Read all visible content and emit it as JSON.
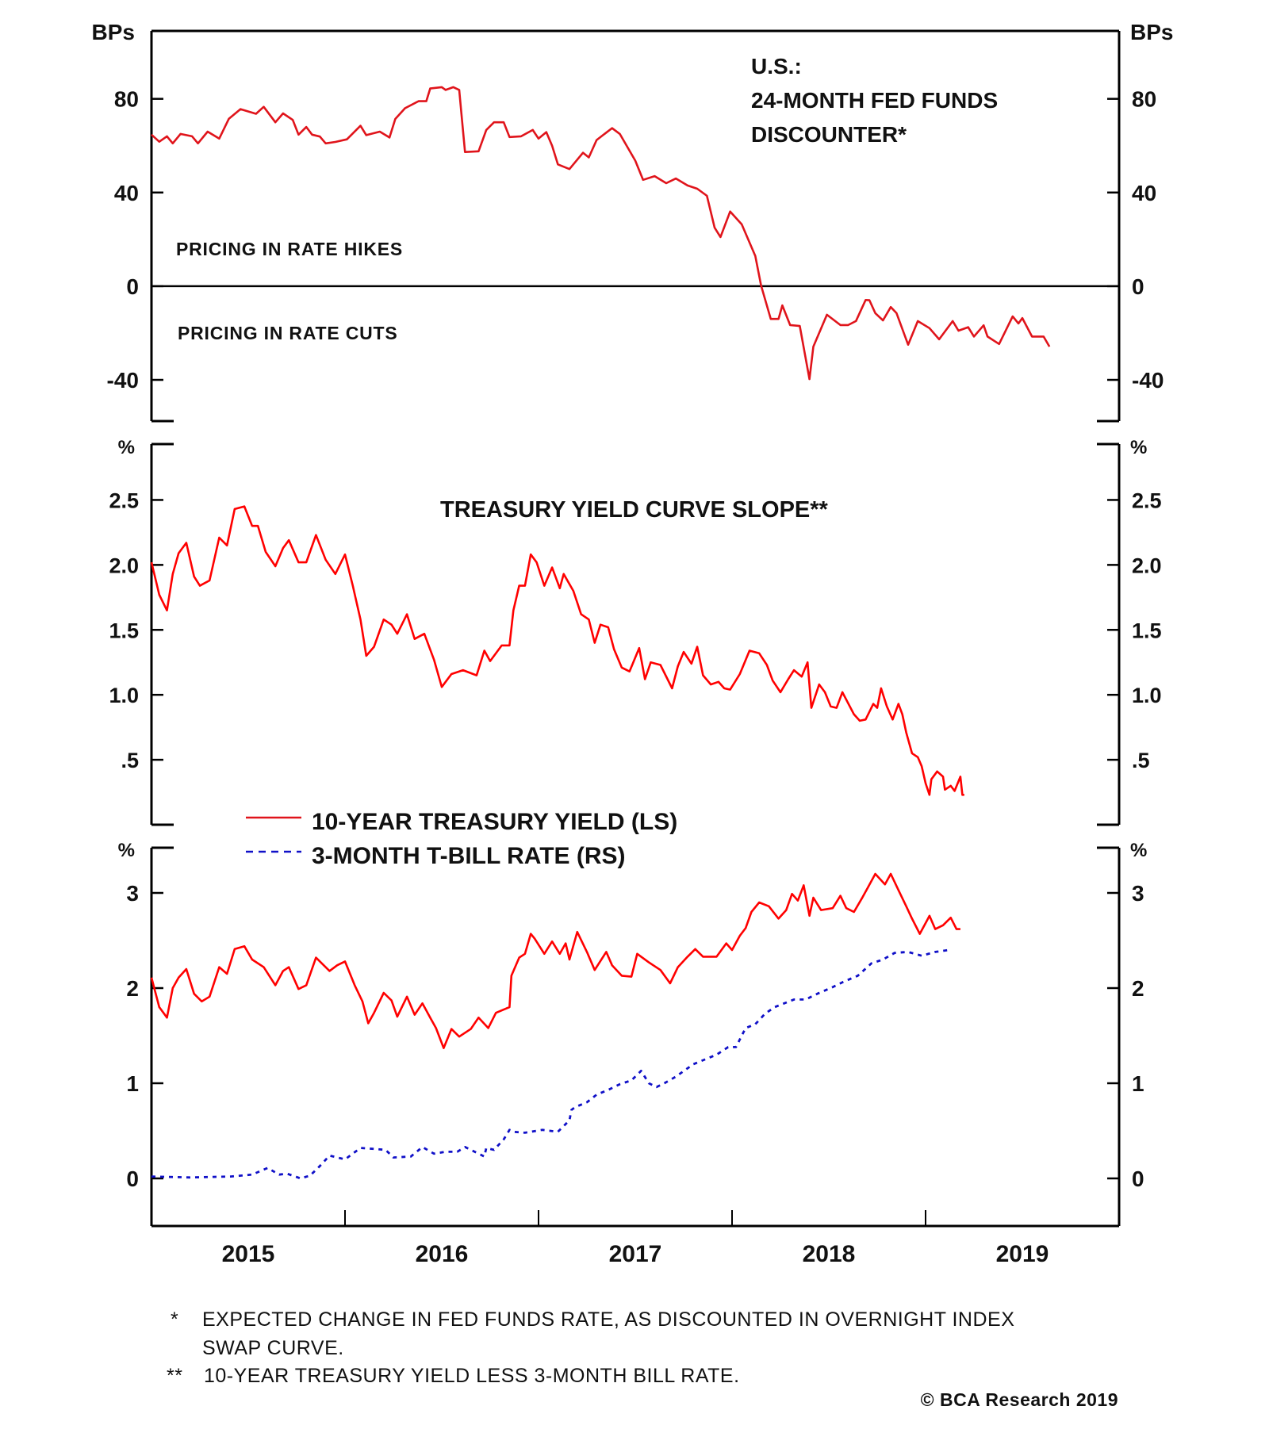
{
  "chart_data": [
    {
      "type": "line",
      "panel": "top",
      "title": "U.S.: 24-MONTH FED FUNDS DISCOUNTER*",
      "title_lines": [
        "U.S.:",
        "24-MONTH FED FUNDS",
        "DISCOUNTER*"
      ],
      "ylabel_left": "BPs",
      "ylabel_right": "BPs",
      "ylim": [
        -57.6,
        109
      ],
      "yticks": [
        80,
        40,
        0,
        -40
      ],
      "ytick_labels": [
        "80",
        "40",
        "0",
        "-40"
      ],
      "zero_line": true,
      "annotations": [
        "PRICING IN RATE HIKES",
        "PRICING IN RATE CUTS"
      ],
      "series": [
        {
          "name": "24-Month Fed Funds Discounter",
          "color": "#e0141b",
          "style": "solid",
          "x": [
            2015.0,
            2015.04,
            2015.08,
            2015.11,
            2015.15,
            2015.21,
            2015.24,
            2015.29,
            2015.35,
            2015.4,
            2015.46,
            2015.54,
            2015.58,
            2015.64,
            2015.68,
            2015.73,
            2015.76,
            2015.8,
            2015.83,
            2015.87,
            2015.9,
            2015.95,
            2016.01,
            2016.08,
            2016.11,
            2016.18,
            2016.23,
            2016.26,
            2016.31,
            2016.38,
            2016.42,
            2016.44,
            2016.5,
            2016.52,
            2016.56,
            2016.59,
            2016.6,
            2016.62,
            2016.69,
            2016.73,
            2016.77,
            2016.82,
            2016.85,
            2016.91,
            2016.97,
            2017.0,
            2017.04,
            2017.07,
            2017.1,
            2017.16,
            2017.23,
            2017.26,
            2017.3,
            2017.38,
            2017.42,
            2017.5,
            2017.54,
            2017.6,
            2017.66,
            2017.71,
            2017.77,
            2017.82,
            2017.87,
            2017.91,
            2017.94,
            2017.99,
            2018.05,
            2018.12,
            2018.15,
            2018.2,
            2018.24,
            2018.26,
            2018.3,
            2018.35,
            2018.4,
            2018.42,
            2018.49,
            2018.56,
            2018.6,
            2018.64,
            2018.69,
            2018.71,
            2018.74,
            2018.78,
            2018.82,
            2018.85,
            2018.91,
            2018.96,
            2019.02,
            2019.07,
            2019.14,
            2019.17,
            2019.22,
            2019.25,
            2019.3,
            2019.32,
            2019.38,
            2019.45,
            2019.48,
            2019.5,
            2019.55,
            2019.61,
            2019.64
          ],
          "y": [
            64.7,
            61.7,
            64,
            61,
            65,
            64,
            61,
            66,
            63,
            71.5,
            75.6,
            73.6,
            76.6,
            70,
            73.8,
            71,
            64.7,
            68,
            64.7,
            63.9,
            61,
            61.6,
            62.7,
            68.5,
            64.5,
            66,
            63.5,
            71.4,
            76,
            79,
            79,
            84.4,
            85,
            83.8,
            85,
            83.8,
            75,
            57.3,
            57.6,
            66.7,
            70,
            70,
            63.7,
            64,
            66.7,
            63,
            65.8,
            60,
            52,
            50,
            57,
            55,
            62.4,
            67.5,
            65,
            53.6,
            45.4,
            47,
            44,
            46,
            43,
            41.6,
            38.6,
            25,
            21,
            31.9,
            26.4,
            12.9,
            0.3,
            -14,
            -14,
            -8.2,
            -16.6,
            -17,
            -39.7,
            -25.8,
            -12.2,
            -16.6,
            -16.6,
            -14.9,
            -5.9,
            -6,
            -11.5,
            -14.6,
            -8.9,
            -11.5,
            -25,
            -14.9,
            -17.9,
            -22.7,
            -14.9,
            -19,
            -17.5,
            -21.5,
            -16.7,
            -21.5,
            -24.7,
            -12.9,
            -15.9,
            -13.6,
            -21.5,
            -21.5,
            -25.8
          ]
        }
      ]
    },
    {
      "type": "line",
      "panel": "middle",
      "title": "TREASURY YIELD CURVE SLOPE**",
      "ylabel_left": "%",
      "ylabel_right": "%",
      "ylim": [
        0,
        2.93
      ],
      "yticks": [
        0.5,
        1.0,
        1.5,
        2.0,
        2.5
      ],
      "ytick_labels": [
        ".5",
        "1.0",
        "1.5",
        "2.0",
        "2.5"
      ],
      "series": [
        {
          "name": "Treasury Yield Curve Slope",
          "color": "#ff0000",
          "style": "solid",
          "x": [
            2015.0,
            2015.04,
            2015.08,
            2015.11,
            2015.14,
            2015.18,
            2015.22,
            2015.25,
            2015.3,
            2015.35,
            2015.39,
            2015.43,
            2015.48,
            2015.52,
            2015.55,
            2015.59,
            2015.64,
            2015.68,
            2015.71,
            2015.76,
            2015.8,
            2015.85,
            2015.9,
            2015.95,
            2016.0,
            2016.04,
            2016.08,
            2016.11,
            2016.15,
            2016.2,
            2016.24,
            2016.27,
            2016.32,
            2016.36,
            2016.41,
            2016.46,
            2016.5,
            2016.55,
            2016.61,
            2016.68,
            2016.72,
            2016.75,
            2016.81,
            2016.85,
            2016.87,
            2016.9,
            2016.93,
            2016.96,
            2016.99,
            2017.03,
            2017.07,
            2017.11,
            2017.13,
            2017.18,
            2017.22,
            2017.26,
            2017.29,
            2017.32,
            2017.36,
            2017.39,
            2017.43,
            2017.47,
            2017.52,
            2017.55,
            2017.58,
            2017.63,
            2017.69,
            2017.72,
            2017.75,
            2017.79,
            2017.82,
            2017.85,
            2017.89,
            2017.93,
            2017.96,
            2017.99,
            2018.04,
            2018.09,
            2018.14,
            2018.18,
            2018.21,
            2018.25,
            2018.29,
            2018.32,
            2018.36,
            2018.39,
            2018.41,
            2018.45,
            2018.48,
            2018.51,
            2018.54,
            2018.57,
            2018.63,
            2018.66,
            2018.69,
            2018.73,
            2018.75,
            2018.77,
            2018.8,
            2018.83,
            2018.86,
            2018.88,
            2018.9,
            2018.93,
            2018.96,
            2018.98,
            2019.0,
            2019.02,
            2019.03,
            2019.06,
            2019.09,
            2019.1,
            2019.13,
            2019.15,
            2019.18,
            2019.19,
            2019.2
          ],
          "y": [
            2.02,
            1.77,
            1.65,
            1.93,
            2.09,
            2.17,
            1.91,
            1.84,
            1.88,
            2.21,
            2.15,
            2.43,
            2.45,
            2.3,
            2.3,
            2.1,
            1.99,
            2.13,
            2.19,
            2.02,
            2.02,
            2.23,
            2.04,
            1.93,
            2.08,
            1.84,
            1.58,
            1.3,
            1.37,
            1.58,
            1.54,
            1.47,
            1.62,
            1.43,
            1.47,
            1.27,
            1.06,
            1.16,
            1.19,
            1.15,
            1.34,
            1.26,
            1.38,
            1.38,
            1.65,
            1.84,
            1.84,
            2.08,
            2.02,
            1.84,
            1.98,
            1.82,
            1.93,
            1.8,
            1.62,
            1.58,
            1.4,
            1.54,
            1.52,
            1.35,
            1.21,
            1.18,
            1.36,
            1.12,
            1.25,
            1.23,
            1.05,
            1.22,
            1.33,
            1.24,
            1.37,
            1.15,
            1.08,
            1.1,
            1.05,
            1.04,
            1.16,
            1.34,
            1.32,
            1.23,
            1.11,
            1.02,
            1.12,
            1.19,
            1.14,
            1.25,
            0.9,
            1.08,
            1.02,
            0.91,
            0.9,
            1.02,
            0.85,
            0.8,
            0.81,
            0.93,
            0.9,
            1.05,
            0.91,
            0.81,
            0.93,
            0.85,
            0.71,
            0.55,
            0.52,
            0.45,
            0.32,
            0.23,
            0.35,
            0.41,
            0.37,
            0.27,
            0.3,
            0.26,
            0.37,
            0.23,
            0.23
          ]
        }
      ]
    },
    {
      "type": "line",
      "panel": "bottom",
      "ylabel_left": "%",
      "ylabel_right": "%",
      "ylim": [
        -0.5,
        3.475
      ],
      "yticks": [
        0,
        1,
        2,
        3
      ],
      "ytick_labels": [
        "0",
        "1",
        "2",
        "3"
      ],
      "xlim": [
        2015,
        2020
      ],
      "xticks": [
        2016,
        2017,
        2018,
        2019
      ],
      "xtick_labels": [
        "2015",
        "2016",
        "2017",
        "2018",
        "2019"
      ],
      "legend": {
        "placement": "top-left",
        "entries": [
          {
            "label": "10-YEAR TREASURY YIELD (LS)",
            "color": "#e0141b",
            "style": "solid"
          },
          {
            "label": "3-MONTH T-BILL RATE (RS)",
            "color": "#1010c8",
            "style": "dashed"
          }
        ]
      },
      "series": [
        {
          "name": "10-YEAR TREASURY YIELD (LS)",
          "color": "#ff0000",
          "style": "solid",
          "x": [
            2015.0,
            2015.04,
            2015.08,
            2015.11,
            2015.14,
            2015.18,
            2015.22,
            2015.26,
            2015.3,
            2015.35,
            2015.39,
            2015.43,
            2015.48,
            2015.52,
            2015.58,
            2015.64,
            2015.68,
            2015.71,
            2015.76,
            2015.8,
            2015.85,
            2015.92,
            2015.96,
            2016.0,
            2016.05,
            2016.09,
            2016.12,
            2016.15,
            2016.2,
            2016.24,
            2016.27,
            2016.32,
            2016.36,
            2016.4,
            2016.44,
            2016.47,
            2016.51,
            2016.55,
            2016.59,
            2016.65,
            2016.69,
            2016.74,
            2016.78,
            2016.85,
            2016.86,
            2016.9,
            2016.93,
            2016.96,
            2016.98,
            2017.03,
            2017.07,
            2017.11,
            2017.14,
            2017.16,
            2017.2,
            2017.25,
            2017.29,
            2017.35,
            2017.38,
            2017.43,
            2017.48,
            2017.51,
            2017.57,
            2017.63,
            2017.68,
            2017.72,
            2017.77,
            2017.81,
            2017.85,
            2017.92,
            2017.97,
            2018.0,
            2018.04,
            2018.07,
            2018.1,
            2018.14,
            2018.19,
            2018.24,
            2018.28,
            2018.31,
            2018.34,
            2018.37,
            2018.4,
            2018.42,
            2018.46,
            2018.52,
            2018.56,
            2018.59,
            2018.63,
            2018.67,
            2018.7,
            2018.74,
            2018.79,
            2018.82,
            2018.86,
            2018.9,
            2018.93,
            2018.97,
            2019.01,
            2019.02,
            2019.05,
            2019.09,
            2019.13,
            2019.16,
            2019.18
          ],
          "y": [
            2.11,
            1.8,
            1.69,
            2.0,
            2.11,
            2.2,
            1.94,
            1.86,
            1.91,
            2.22,
            2.15,
            2.41,
            2.44,
            2.3,
            2.22,
            2.03,
            2.18,
            2.22,
            1.99,
            2.03,
            2.32,
            2.18,
            2.24,
            2.28,
            2.03,
            1.86,
            1.63,
            1.74,
            1.95,
            1.87,
            1.7,
            1.91,
            1.72,
            1.84,
            1.69,
            1.58,
            1.37,
            1.57,
            1.49,
            1.57,
            1.69,
            1.58,
            1.74,
            1.8,
            2.13,
            2.32,
            2.36,
            2.57,
            2.52,
            2.36,
            2.49,
            2.36,
            2.47,
            2.3,
            2.59,
            2.38,
            2.19,
            2.38,
            2.24,
            2.13,
            2.12,
            2.36,
            2.27,
            2.19,
            2.05,
            2.22,
            2.33,
            2.41,
            2.33,
            2.33,
            2.47,
            2.4,
            2.55,
            2.63,
            2.8,
            2.9,
            2.86,
            2.73,
            2.82,
            2.99,
            2.92,
            3.08,
            2.76,
            2.95,
            2.82,
            2.84,
            2.97,
            2.84,
            2.8,
            2.94,
            3.05,
            3.2,
            3.09,
            3.2,
            3.03,
            2.86,
            2.73,
            2.57,
            2.72,
            2.76,
            2.62,
            2.66,
            2.74,
            2.62,
            2.62
          ]
        },
        {
          "name": "3-MONTH T-BILL RATE (RS)",
          "color": "#1010c8",
          "style": "dashed",
          "x": [
            2015.0,
            2015.2,
            2015.41,
            2015.52,
            2015.6,
            2015.66,
            2015.7,
            2015.77,
            2015.82,
            2015.87,
            2015.92,
            2016.0,
            2016.08,
            2016.15,
            2016.21,
            2016.25,
            2016.34,
            2016.4,
            2016.46,
            2016.52,
            2016.58,
            2016.62,
            2016.72,
            2016.73,
            2016.77,
            2016.82,
            2016.85,
            2016.87,
            2016.93,
            2017.02,
            2017.1,
            2017.16,
            2017.17,
            2017.19,
            2017.25,
            2017.3,
            2017.36,
            2017.42,
            2017.48,
            2017.53,
            2017.57,
            2017.61,
            2017.65,
            2017.71,
            2017.8,
            2017.86,
            2017.92,
            2017.98,
            2018.02,
            2018.07,
            2018.12,
            2018.17,
            2018.22,
            2018.32,
            2018.38,
            2018.44,
            2018.52,
            2018.58,
            2018.65,
            2018.72,
            2018.78,
            2018.84,
            2018.91,
            2018.98,
            2019.05,
            2019.12
          ],
          "y": [
            0.02,
            0.01,
            0.02,
            0.04,
            0.11,
            0.04,
            0.05,
            0.0,
            0.03,
            0.13,
            0.24,
            0.2,
            0.32,
            0.31,
            0.3,
            0.22,
            0.23,
            0.33,
            0.26,
            0.28,
            0.28,
            0.33,
            0.23,
            0.32,
            0.3,
            0.41,
            0.51,
            0.49,
            0.48,
            0.51,
            0.49,
            0.61,
            0.72,
            0.75,
            0.8,
            0.88,
            0.93,
            0.99,
            1.03,
            1.13,
            1.0,
            0.96,
            1.0,
            1.07,
            1.2,
            1.25,
            1.3,
            1.38,
            1.38,
            1.58,
            1.62,
            1.73,
            1.8,
            1.88,
            1.88,
            1.94,
            2.01,
            2.07,
            2.13,
            2.26,
            2.3,
            2.37,
            2.38,
            2.34,
            2.38,
            2.4
          ]
        }
      ]
    }
  ],
  "footnotes": [
    {
      "marker": "*",
      "text": "EXPECTED CHANGE IN FED FUNDS RATE, AS DISCOUNTED IN OVERNIGHT INDEX",
      "text2": "SWAP CURVE."
    },
    {
      "marker": "**",
      "text": "10-YEAR TREASURY YIELD LESS 3-MONTH BILL RATE."
    }
  ],
  "copyright": "© BCA Research 2019"
}
